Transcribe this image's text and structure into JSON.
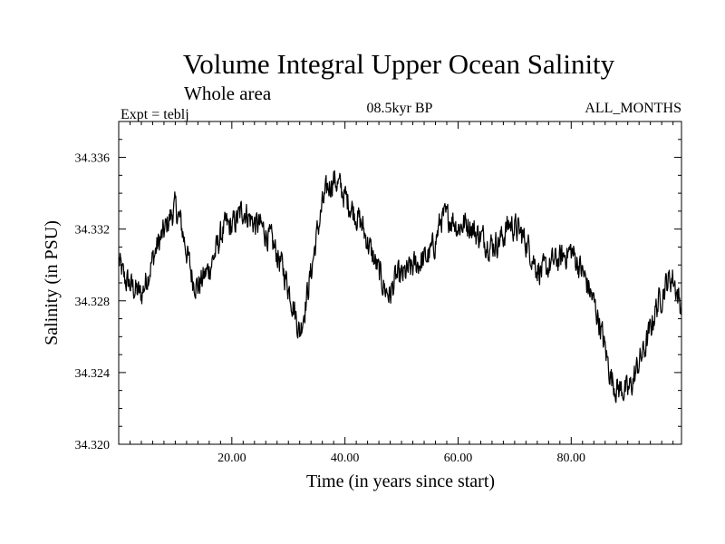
{
  "chart_data": {
    "type": "line",
    "title": "Volume Integral Upper Ocean Salinity",
    "subtitle": "Whole area",
    "experiment": "Expt = teblj",
    "period": "08.5kyr BP",
    "months": "ALL_MONTHS",
    "xlabel": "Time (in years since start)",
    "ylabel": "Salinity (in PSU)",
    "xlim": [
      0,
      99.5
    ],
    "ylim": [
      34.32,
      34.338
    ],
    "xticks": [
      20,
      40,
      60,
      80
    ],
    "xtick_labels": [
      "20.00",
      "40.00",
      "60.00",
      "80.00"
    ],
    "yticks": [
      34.32,
      34.324,
      34.328,
      34.332,
      34.336
    ],
    "ytick_labels": [
      "34.320",
      "34.324",
      "34.328",
      "34.332",
      "34.336"
    ],
    "noise_amplitude": 0.0012,
    "series": [
      {
        "name": "Salinity",
        "color": "#000000",
        "x": [
          0,
          1,
          2,
          3,
          4,
          5,
          6,
          7,
          8,
          9,
          10,
          11,
          12,
          13,
          14,
          15,
          16,
          17,
          18,
          19,
          20,
          21,
          22,
          23,
          24,
          25,
          26,
          27,
          28,
          29,
          30,
          31,
          32,
          33,
          34,
          35,
          36,
          37,
          38,
          39,
          40,
          41,
          42,
          43,
          44,
          45,
          46,
          47,
          48,
          49,
          50,
          51,
          52,
          53,
          54,
          55,
          56,
          57,
          58,
          59,
          60,
          61,
          62,
          63,
          64,
          65,
          66,
          67,
          68,
          69,
          70,
          71,
          72,
          73,
          74,
          75,
          76,
          77,
          78,
          79,
          80,
          81,
          82,
          83,
          84,
          85,
          86,
          87,
          88,
          89,
          90,
          91,
          92,
          93,
          94,
          95,
          96,
          97,
          98,
          99.5
        ],
        "values": [
          34.3302,
          34.3292,
          34.3289,
          34.3286,
          34.3283,
          34.3293,
          34.3303,
          34.3312,
          34.3318,
          34.3326,
          34.3332,
          34.3323,
          34.3308,
          34.3293,
          34.3288,
          34.3293,
          34.3298,
          34.3306,
          34.3316,
          34.3322,
          34.3321,
          34.3326,
          34.3331,
          34.3327,
          34.3323,
          34.3322,
          34.3318,
          34.3313,
          34.3306,
          34.3298,
          34.3288,
          34.3276,
          34.3262,
          34.3278,
          34.3296,
          34.3316,
          34.3333,
          34.3343,
          34.3348,
          34.3344,
          34.3338,
          34.3333,
          34.3328,
          34.3322,
          34.3313,
          34.3304,
          34.3296,
          34.3287,
          34.3283,
          34.3293,
          34.3293,
          34.3296,
          34.3299,
          34.3301,
          34.3303,
          34.3306,
          34.3313,
          34.3326,
          34.3326,
          34.3326,
          34.3321,
          34.3323,
          34.3323,
          34.3318,
          34.3316,
          34.3313,
          34.3311,
          34.3313,
          34.3316,
          34.3323,
          34.3321,
          34.3318,
          34.3313,
          34.3306,
          34.3298,
          34.3296,
          34.3299,
          34.3302,
          34.3303,
          34.3306,
          34.3308,
          34.3302,
          34.3296,
          34.3288,
          34.3279,
          34.3268,
          34.3253,
          34.3238,
          34.3231,
          34.3231,
          34.3229,
          34.3236,
          34.3246,
          34.3253,
          34.3264,
          34.3276,
          34.3283,
          34.3291,
          34.3293,
          34.3276
        ]
      }
    ]
  }
}
